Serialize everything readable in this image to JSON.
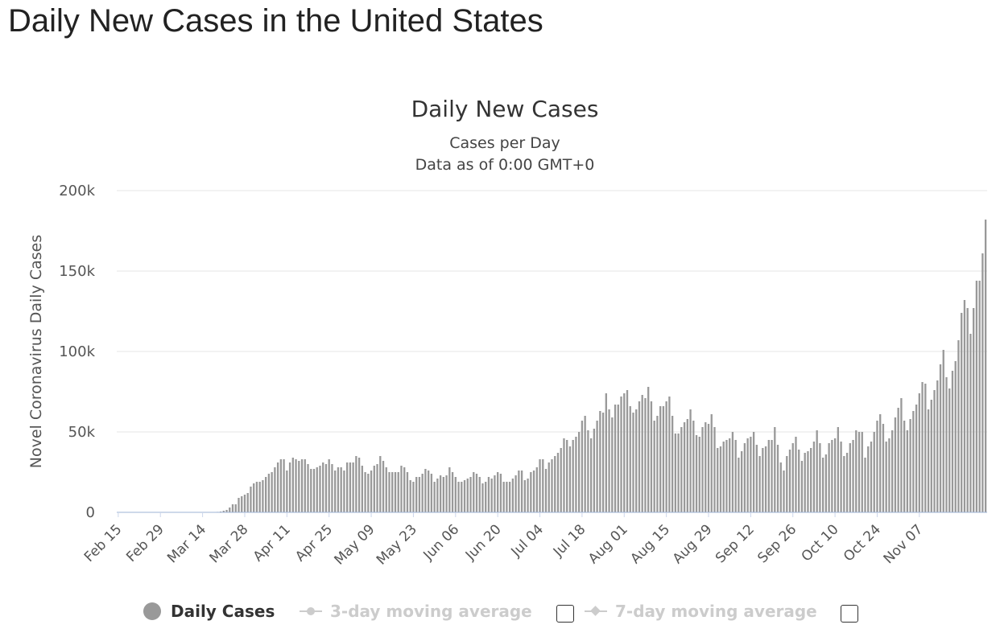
{
  "page": {
    "title": "Daily New Cases in the United States"
  },
  "legend": {
    "items": [
      {
        "label": "Daily Cases",
        "active": true,
        "color": "#999999"
      },
      {
        "label": "3-day moving average",
        "active": false,
        "color": "#cccccc"
      },
      {
        "label": "7-day moving average",
        "active": false,
        "color": "#cccccc"
      }
    ]
  },
  "chart_data": {
    "type": "bar",
    "title": "Daily New Cases",
    "subtitle": "Cases per Day",
    "subtitle2": "Data as of 0:00 GMT+0",
    "ylabel": "Novel Coronavirus Daily Cases",
    "xlabel": "",
    "ylim": [
      0,
      200000
    ],
    "yticks": [
      0,
      50000,
      100000,
      150000,
      200000
    ],
    "ytick_labels": [
      "0",
      "50k",
      "100k",
      "150k",
      "200k"
    ],
    "xtick_labels": [
      "Feb 15",
      "Feb 29",
      "Mar 14",
      "Mar 28",
      "Apr 11",
      "Apr 25",
      "May 09",
      "May 23",
      "Jun 06",
      "Jun 20",
      "Jul 04",
      "Jul 18",
      "Aug 01",
      "Aug 15",
      "Aug 29",
      "Sep 12",
      "Sep 26",
      "Oct 10",
      "Oct 24",
      "Nov 07"
    ],
    "grid": true,
    "bar_color": "#999999",
    "start_date": "Feb 15",
    "values": [
      0,
      0,
      0,
      0,
      0,
      0,
      0,
      0,
      0,
      0,
      0,
      0,
      0,
      0,
      0,
      0,
      0,
      0,
      0,
      0,
      0,
      0,
      0,
      0,
      0,
      0,
      0,
      0,
      0,
      0,
      0,
      100,
      200,
      300,
      500,
      1000,
      1500,
      3000,
      5000,
      5000,
      9000,
      10000,
      11000,
      12000,
      16000,
      18000,
      19000,
      19000,
      20000,
      22000,
      24000,
      25000,
      28000,
      31000,
      33000,
      33000,
      26000,
      31000,
      34000,
      33000,
      32000,
      33000,
      33000,
      30000,
      27000,
      27000,
      28000,
      29000,
      31000,
      30000,
      33000,
      30000,
      26000,
      28000,
      28000,
      26000,
      31000,
      31000,
      31000,
      35000,
      34000,
      29000,
      25000,
      24000,
      26000,
      29000,
      30000,
      35000,
      32000,
      28000,
      25000,
      25000,
      25000,
      25000,
      29000,
      28000,
      25000,
      20000,
      19000,
      22000,
      22000,
      24000,
      27000,
      26000,
      24000,
      19000,
      21000,
      23000,
      22000,
      23000,
      28000,
      25000,
      22000,
      19000,
      19000,
      20000,
      21000,
      22000,
      25000,
      24000,
      22000,
      18000,
      19000,
      22000,
      21000,
      23000,
      25000,
      24000,
      19000,
      19000,
      19000,
      21000,
      23000,
      26000,
      26000,
      20000,
      21000,
      25000,
      26000,
      28000,
      33000,
      33000,
      27000,
      31000,
      33000,
      35000,
      37000,
      40000,
      46000,
      45000,
      41000,
      45000,
      47000,
      50000,
      57000,
      60000,
      51000,
      46000,
      52000,
      57000,
      63000,
      62000,
      74000,
      64000,
      59000,
      67000,
      67000,
      72000,
      74000,
      76000,
      66000,
      62000,
      64000,
      69000,
      73000,
      71000,
      78000,
      69000,
      57000,
      60000,
      66000,
      66000,
      69000,
      72000,
      60000,
      49000,
      49000,
      53000,
      56000,
      58000,
      64000,
      57000,
      48000,
      47000,
      53000,
      56000,
      55000,
      61000,
      53000,
      40000,
      41000,
      44000,
      45000,
      46000,
      50000,
      45000,
      34000,
      38000,
      43000,
      46000,
      47000,
      50000,
      42000,
      35000,
      40000,
      41000,
      45000,
      45000,
      53000,
      42000,
      31000,
      26000,
      35000,
      39000,
      43000,
      47000,
      39000,
      32000,
      37000,
      38000,
      40000,
      44000,
      51000,
      43000,
      34000,
      36000,
      43000,
      45000,
      46000,
      53000,
      44000,
      35000,
      37000,
      43000,
      45000,
      51000,
      50000,
      50000,
      34000,
      41000,
      44000,
      50000,
      57000,
      61000,
      55000,
      44000,
      46000,
      51000,
      59000,
      65000,
      71000,
      57000,
      51000,
      58000,
      63000,
      67000,
      74000,
      81000,
      80000,
      64000,
      70000,
      76000,
      82000,
      92000,
      101000,
      84000,
      77000,
      88000,
      94000,
      107000,
      124000,
      132000,
      127000,
      111000,
      127000,
      144000,
      144000,
      161000,
      182000
    ]
  }
}
